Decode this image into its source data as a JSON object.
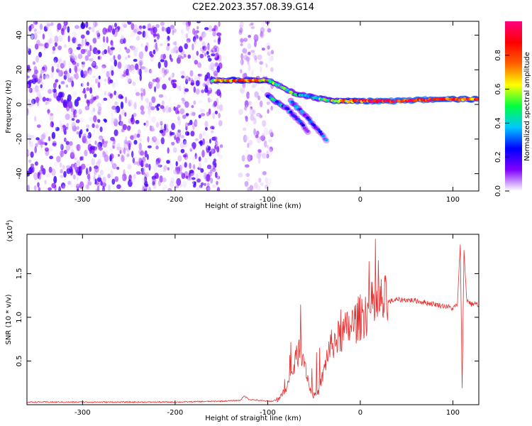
{
  "title": "C2E2.2023.357.08.39.G14",
  "chart_data": [
    {
      "type": "heatmap",
      "xlabel": "Height of straight line (km)",
      "ylabel": "Frequency (Hz)",
      "xlim": [
        -360,
        128
      ],
      "ylim": [
        -50,
        48
      ],
      "xticks": [
        "-300",
        "-200",
        "-100",
        "0",
        "100"
      ],
      "xtick_values": [
        -300,
        -200,
        -100,
        0,
        100
      ],
      "yticks": [
        "-40",
        "-20",
        "0",
        "20",
        "40"
      ],
      "ytick_values": [
        -40,
        -20,
        0,
        20,
        40
      ],
      "colorbar": {
        "label": "Normalized spectral amplitude",
        "range": [
          0,
          1
        ],
        "ticks": [
          "0.0",
          "0.2",
          "0.4",
          "0.6",
          "0.8"
        ],
        "tick_values": [
          0.0,
          0.2,
          0.4,
          0.6,
          0.8
        ],
        "colors": [
          "#ffffff",
          "#8000ff",
          "#0000ff",
          "#00c8ff",
          "#00ff40",
          "#ffff00",
          "#ff6000",
          "#ff0000",
          "#ff0080"
        ]
      },
      "noise_region": {
        "x": [
          -360,
          -150
        ],
        "y": [
          -50,
          48
        ]
      },
      "noise_strip": {
        "x": [
          -130,
          -95
        ],
        "y": [
          -50,
          48
        ]
      },
      "tracks": [
        {
          "points": [
            [
              -160,
              14
            ],
            [
              -130,
              14
            ],
            [
              -100,
              14
            ],
            [
              -85,
              10
            ],
            [
              -70,
              6
            ],
            [
              -50,
              4
            ],
            [
              -30,
              2
            ],
            [
              0,
              2
            ],
            [
              40,
              2
            ],
            [
              80,
              3
            ],
            [
              128,
              3
            ]
          ],
          "amplitudes": [
            0.55,
            0.75,
            0.6,
            0.45,
            0.4,
            0.45,
            0.55,
            0.8,
            0.9,
            0.85,
            0.8
          ]
        },
        {
          "points": [
            [
              -100,
              5
            ],
            [
              -80,
              -2
            ],
            [
              -65,
              -10
            ],
            [
              -55,
              -17
            ]
          ],
          "amplitudes": [
            0.35,
            0.3,
            0.25,
            0.2
          ]
        },
        {
          "points": [
            [
              -75,
              2
            ],
            [
              -60,
              -6
            ],
            [
              -45,
              -15
            ],
            [
              -35,
              -22
            ]
          ],
          "amplitudes": [
            0.3,
            0.28,
            0.22,
            0.18
          ]
        }
      ]
    },
    {
      "type": "line",
      "xlabel": "Height of straight line (km)",
      "ylabel": "SNR (10 * v/v)",
      "yscale_label": "(x10",
      "yscale_exp": "4",
      "yscale_close": ")",
      "xlim": [
        -360,
        128
      ],
      "ylim": [
        0,
        1.95
      ],
      "xticks": [
        "-300",
        "-200",
        "-100",
        "0",
        "100"
      ],
      "xtick_values": [
        -300,
        -200,
        -100,
        0,
        100
      ],
      "yticks": [
        "0.5",
        "1.0",
        "1.5"
      ],
      "ytick_values": [
        0.5,
        1.0,
        1.5
      ],
      "color": "#e83030",
      "series": [
        {
          "x": [
            -360,
            -300,
            -250,
            -200,
            -150,
            -130,
            -125,
            -120,
            -110,
            -100,
            -95,
            -90,
            -85,
            -80,
            -75,
            -70,
            -65,
            -60,
            -55,
            -50,
            -45,
            -40,
            -35,
            -30,
            -25,
            -20,
            -15,
            -10,
            -5,
            0,
            5,
            10,
            20,
            30,
            40,
            50,
            60,
            70,
            80,
            90,
            95,
            100,
            105,
            108,
            110,
            112,
            115,
            120,
            125,
            128
          ],
          "y": [
            0.03,
            0.03,
            0.03,
            0.03,
            0.04,
            0.05,
            0.1,
            0.06,
            0.05,
            0.04,
            0.04,
            0.06,
            0.1,
            0.2,
            0.3,
            0.5,
            0.65,
            0.5,
            0.2,
            0.1,
            0.15,
            0.35,
            0.6,
            0.7,
            0.75,
            0.8,
            0.85,
            0.9,
            0.95,
            1.0,
            1.05,
            1.1,
            1.15,
            1.18,
            1.2,
            1.2,
            1.19,
            1.17,
            1.15,
            1.13,
            1.12,
            1.1,
            1.15,
            1.85,
            0.2,
            1.75,
            1.2,
            1.15,
            1.16,
            1.12
          ]
        }
      ]
    }
  ]
}
